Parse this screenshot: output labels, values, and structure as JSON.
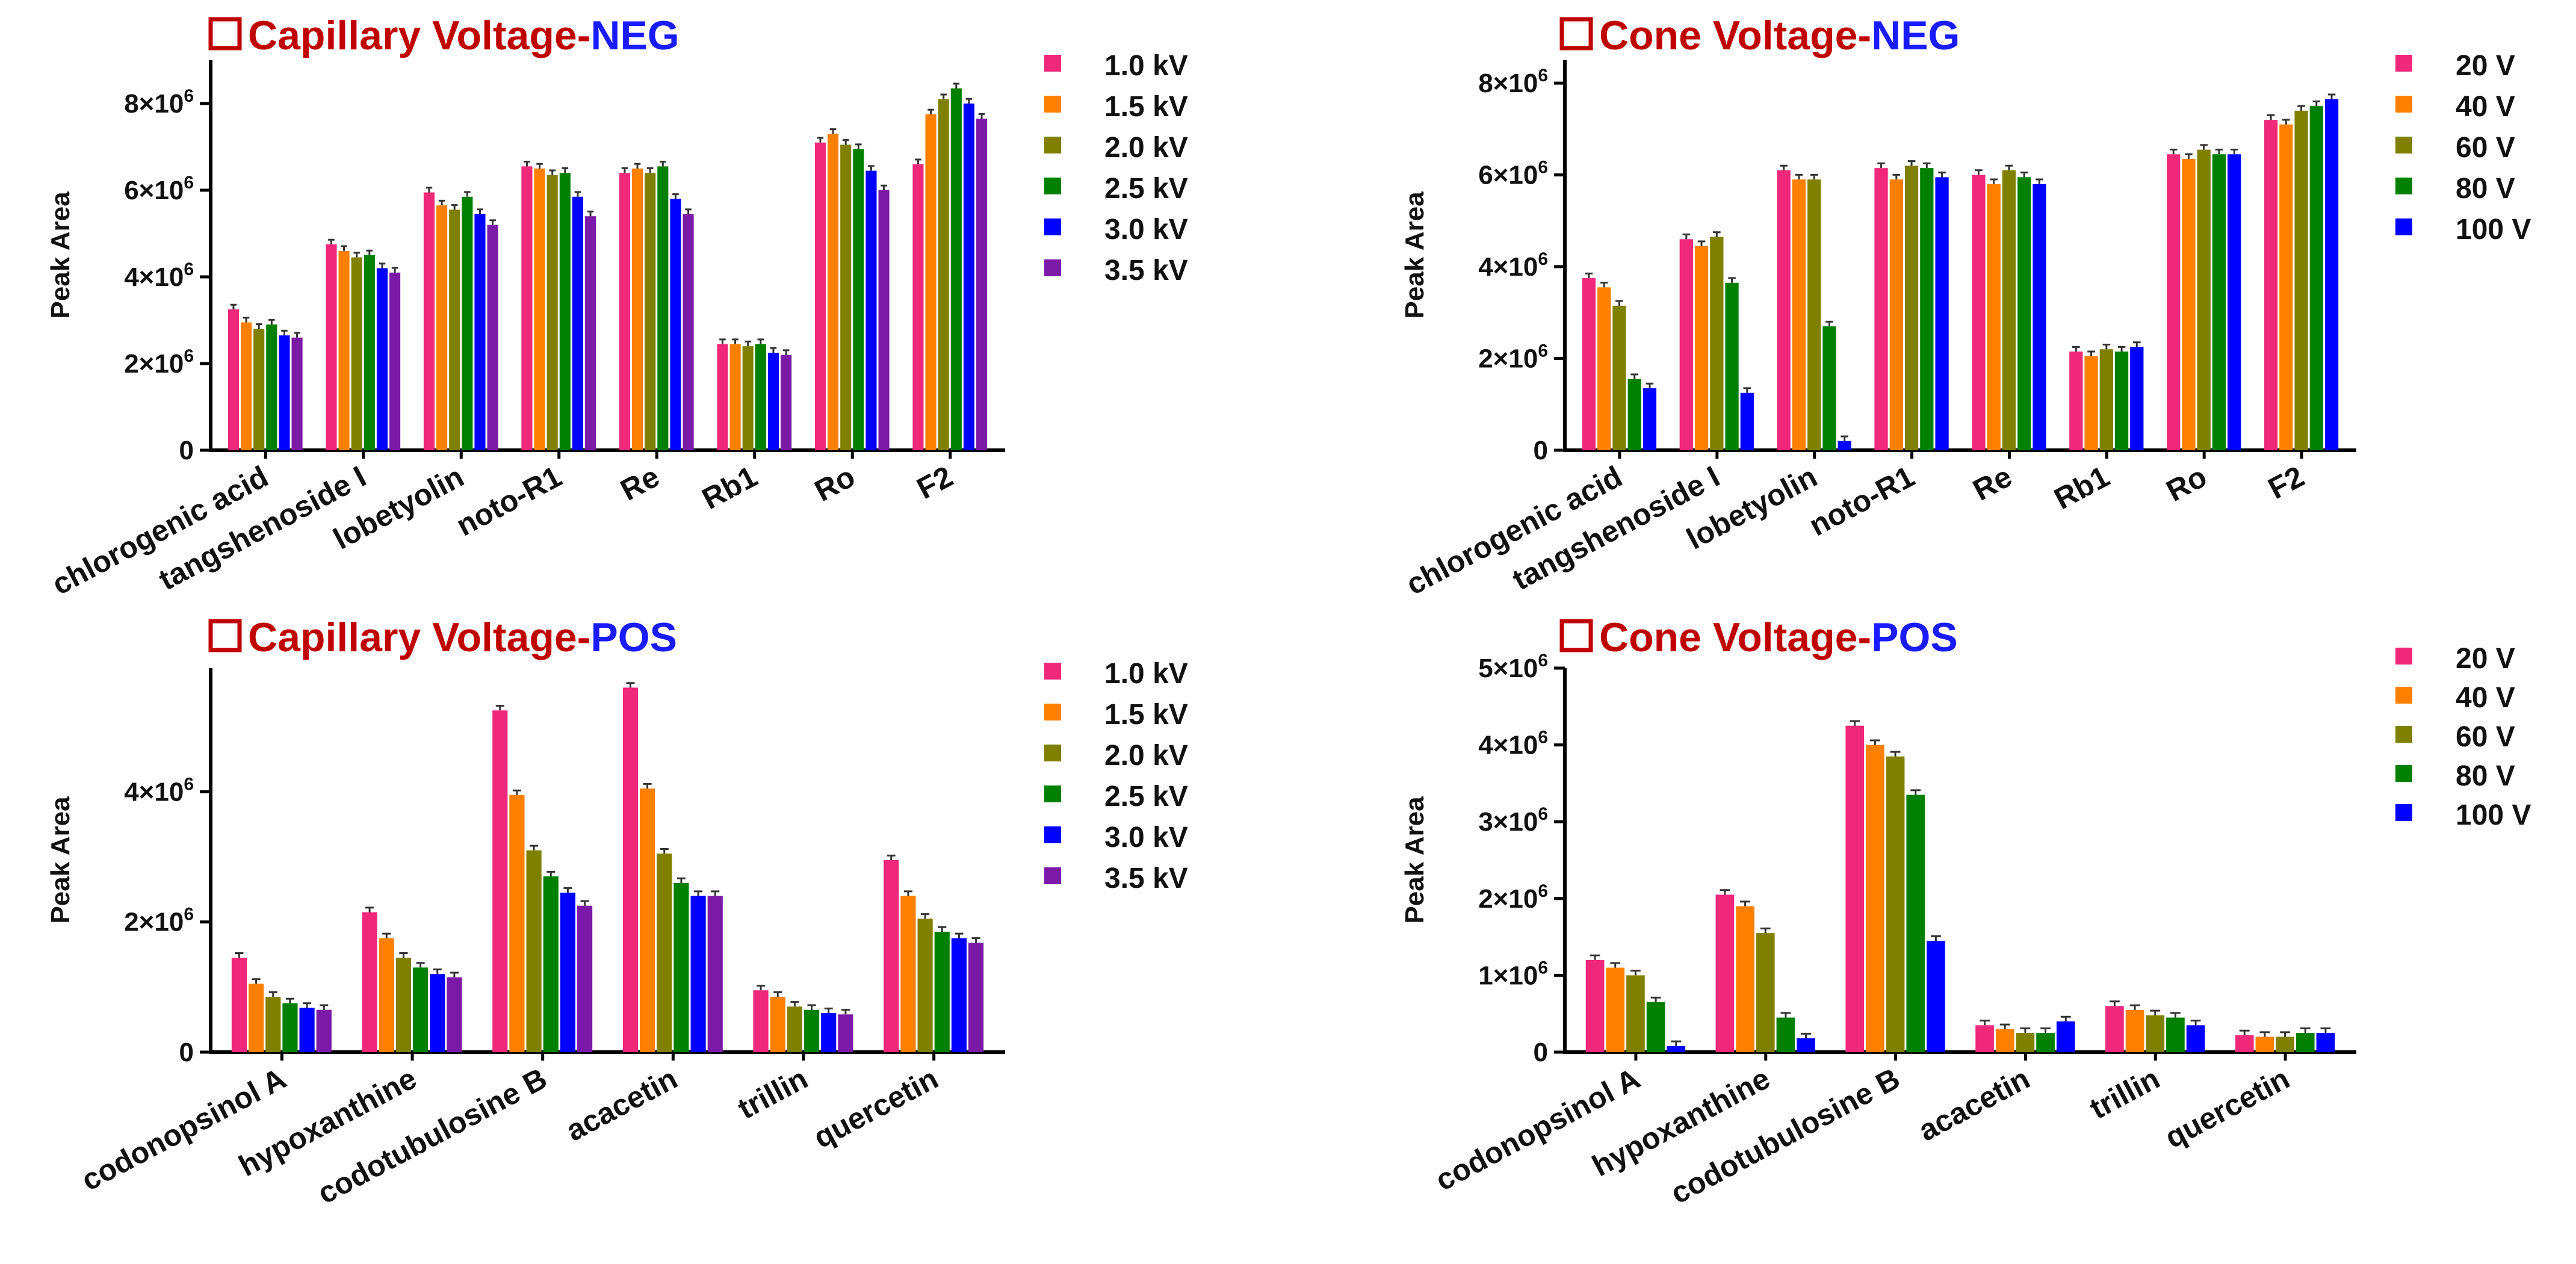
{
  "colors": {
    "title_red": "#c00000",
    "title_blue": "#1a1aff",
    "series": [
      "#f0287a",
      "#ff8000",
      "#808000",
      "#008000",
      "#0000ff",
      "#7a1aa6"
    ]
  },
  "icons": {
    "title_box": "square-outline-icon"
  },
  "chart_data": [
    {
      "type": "bar",
      "title_main": "Capillary Voltage",
      "title_sep": "-",
      "title_mode": "NEG",
      "ylabel": "Peak Area",
      "ylim": [
        0,
        9000000
      ],
      "yticks": [
        0,
        2000000,
        4000000,
        6000000,
        8000000
      ],
      "ytick_labels": [
        "0",
        "2×10",
        "4×10",
        "6×10",
        "8×10"
      ],
      "ytick_exp": "6",
      "categories": [
        "chlorogenic acid",
        "tangshenoside I",
        "lobetyolin",
        "noto-R1",
        "Re",
        "Rb1",
        "Ro",
        "F2"
      ],
      "series": [
        {
          "name": "1.0 kV",
          "values": [
            3250000,
            4750000,
            5950000,
            6550000,
            6400000,
            2450000,
            7100000,
            6600000
          ]
        },
        {
          "name": "1.5 kV",
          "values": [
            2950000,
            4600000,
            5650000,
            6500000,
            6500000,
            2450000,
            7300000,
            7750000
          ]
        },
        {
          "name": "2.0 kV",
          "values": [
            2800000,
            4450000,
            5550000,
            6350000,
            6400000,
            2400000,
            7050000,
            8100000
          ]
        },
        {
          "name": "2.5 kV",
          "values": [
            2900000,
            4500000,
            5850000,
            6400000,
            6550000,
            2450000,
            6950000,
            8350000
          ]
        },
        {
          "name": "3.0 kV",
          "values": [
            2650000,
            4200000,
            5450000,
            5850000,
            5800000,
            2250000,
            6450000,
            8000000
          ]
        },
        {
          "name": "3.5 kV",
          "values": [
            2600000,
            4100000,
            5200000,
            5400000,
            5450000,
            2200000,
            6000000,
            7650000
          ]
        }
      ]
    },
    {
      "type": "bar",
      "title_main": "Cone Voltage",
      "title_sep": "-",
      "title_mode": "NEG",
      "ylabel": "Peak Area",
      "ylim": [
        0,
        8500000
      ],
      "yticks": [
        0,
        2000000,
        4000000,
        6000000,
        8000000
      ],
      "ytick_labels": [
        "0",
        "2×10",
        "4×10",
        "6×10",
        "8×10"
      ],
      "ytick_exp": "6",
      "categories": [
        "chlorogenic acid",
        "tangshenoside I",
        "lobetyolin",
        "noto-R1",
        "Re",
        "Rb1",
        "Ro",
        "F2"
      ],
      "series": [
        {
          "name": "20 V",
          "values": [
            3750000,
            4600000,
            6100000,
            6150000,
            6000000,
            2150000,
            6450000,
            7200000
          ]
        },
        {
          "name": "40 V",
          "values": [
            3550000,
            4450000,
            5900000,
            5900000,
            5800000,
            2050000,
            6350000,
            7100000
          ]
        },
        {
          "name": "60 V",
          "values": [
            3150000,
            4650000,
            5900000,
            6200000,
            6100000,
            2200000,
            6550000,
            7400000
          ]
        },
        {
          "name": "80 V",
          "values": [
            1550000,
            3650000,
            2700000,
            6150000,
            5950000,
            2150000,
            6450000,
            7500000
          ]
        },
        {
          "name": "100 V",
          "values": [
            1350000,
            1250000,
            200000,
            5950000,
            5800000,
            2250000,
            6450000,
            7650000
          ]
        }
      ]
    },
    {
      "type": "bar",
      "title_main": "Capillary Voltage",
      "title_sep": "-",
      "title_mode": "POS",
      "ylabel": "Peak Area",
      "ylim": [
        0,
        5900000
      ],
      "yticks": [
        0,
        2000000,
        4000000
      ],
      "ytick_labels": [
        "0",
        "2×10",
        "4×10"
      ],
      "ytick_exp": "6",
      "categories": [
        "codonopsinol A",
        "hypoxanthine",
        "codotubulosine B",
        "acacetin",
        "trillin",
        "quercetin"
      ],
      "series": [
        {
          "name": "1.0 kV",
          "values": [
            1450000,
            2150000,
            5250000,
            5600000,
            950000,
            2950000
          ]
        },
        {
          "name": "1.5 kV",
          "values": [
            1050000,
            1750000,
            3950000,
            4050000,
            850000,
            2400000
          ]
        },
        {
          "name": "2.0 kV",
          "values": [
            850000,
            1450000,
            3100000,
            3050000,
            700000,
            2050000
          ]
        },
        {
          "name": "2.5 kV",
          "values": [
            750000,
            1300000,
            2700000,
            2600000,
            650000,
            1850000
          ]
        },
        {
          "name": "3.0 kV",
          "values": [
            680000,
            1200000,
            2450000,
            2400000,
            600000,
            1750000
          ]
        },
        {
          "name": "3.5 kV",
          "values": [
            650000,
            1150000,
            2250000,
            2400000,
            580000,
            1680000
          ]
        }
      ]
    },
    {
      "type": "bar",
      "title_main": "Cone Voltage",
      "title_sep": "-",
      "title_mode": "POS",
      "ylabel": "Peak Area",
      "ylim": [
        0,
        5000000
      ],
      "yticks": [
        0,
        1000000,
        2000000,
        3000000,
        4000000,
        5000000
      ],
      "ytick_labels": [
        "0",
        "1×10",
        "2×10",
        "3×10",
        "4×10",
        "5×10"
      ],
      "ytick_exp": "6",
      "categories": [
        "codonopsinol A",
        "hypoxanthine",
        "codotubulosine B",
        "acacetin",
        "trillin",
        "quercetin"
      ],
      "series": [
        {
          "name": "20 V",
          "values": [
            1200000,
            2050000,
            4250000,
            350000,
            600000,
            220000
          ]
        },
        {
          "name": "40 V",
          "values": [
            1100000,
            1900000,
            4000000,
            300000,
            550000,
            200000
          ]
        },
        {
          "name": "60 V",
          "values": [
            1000000,
            1550000,
            3850000,
            250000,
            480000,
            200000
          ]
        },
        {
          "name": "80 V",
          "values": [
            650000,
            450000,
            3350000,
            250000,
            450000,
            250000
          ]
        },
        {
          "name": "100 V",
          "values": [
            80000,
            180000,
            1450000,
            400000,
            350000,
            250000
          ]
        }
      ]
    }
  ]
}
